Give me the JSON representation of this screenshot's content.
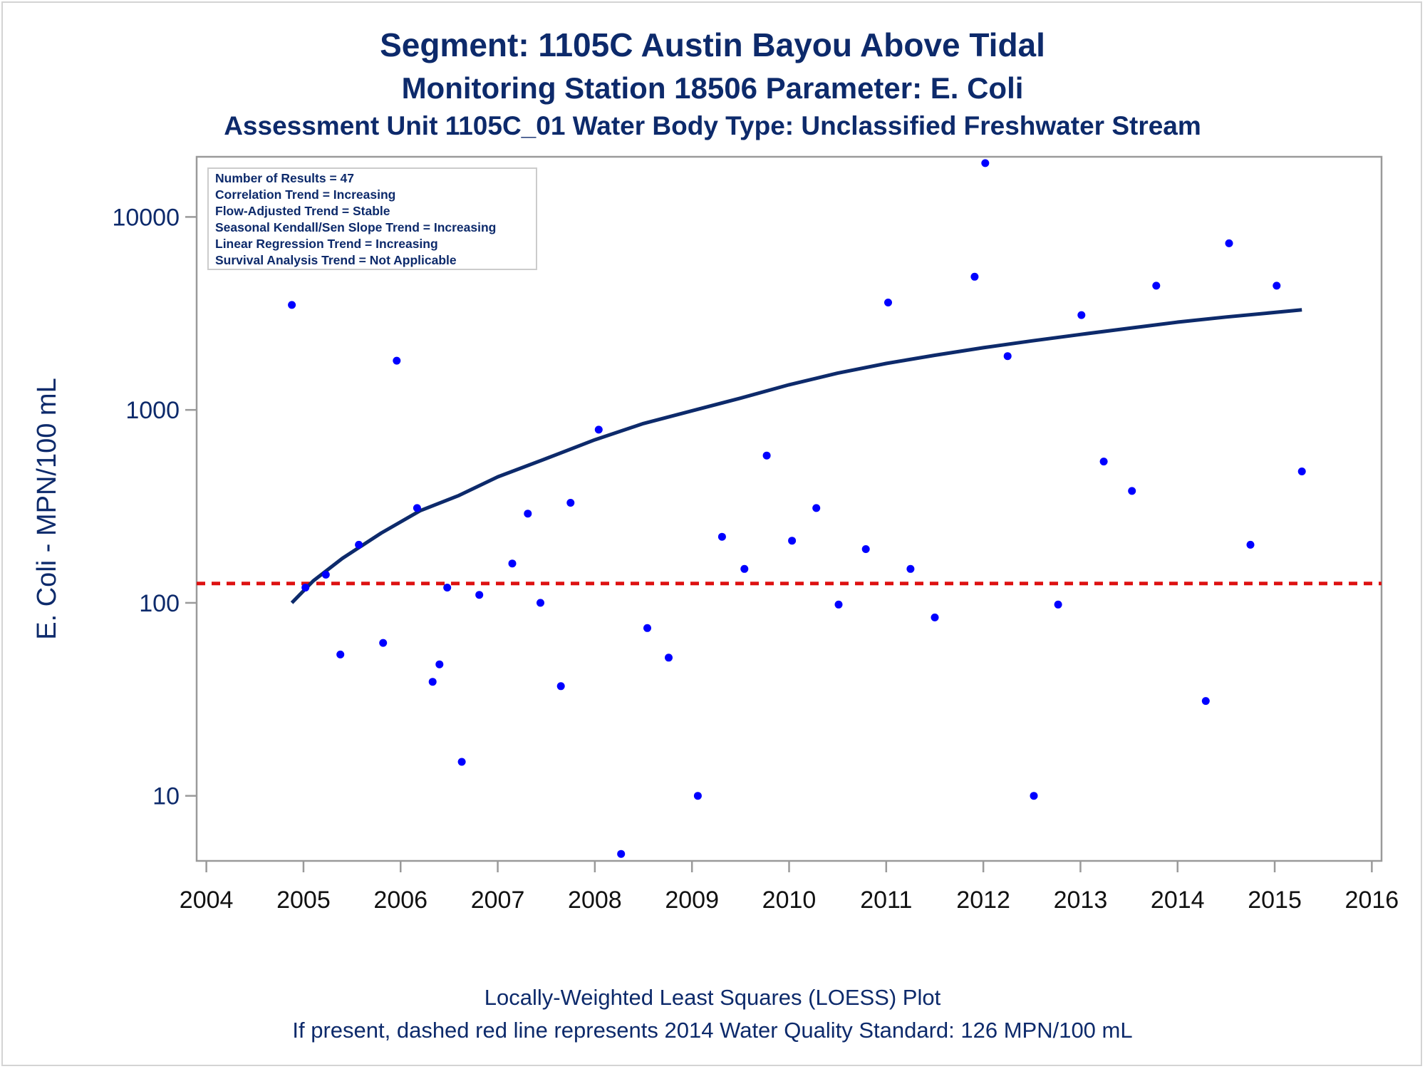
{
  "titles": {
    "line1": "Segment: 1105C  Austin Bayou Above Tidal",
    "line2": "Monitoring Station 18506 Parameter: E. Coli",
    "line3": "Assessment Unit 1105C_01   Water Body Type: Unclassified Freshwater Stream"
  },
  "footnotes": {
    "line1": "Locally-Weighted Least Squares (LOESS) Plot",
    "line2": "If present, dashed red line represents 2014 Water Quality Standard: 126 MPN/100 mL"
  },
  "stats_box": [
    "Number of Results = 47",
    "Correlation Trend = Increasing",
    "Flow-Adjusted Trend = Stable",
    "Seasonal Kendall/Sen Slope Trend = Increasing",
    "Linear Regression Trend = Increasing",
    "Survival Analysis Trend = Not Applicable"
  ],
  "chart_data": {
    "type": "scatter",
    "ylabel": "E. Coli - MPN/100 mL",
    "xlabel": "",
    "y_scale": "log",
    "xlim": [
      2003.9,
      2016.1
    ],
    "ylim": [
      4.6,
      20500
    ],
    "x_ticks": [
      2004,
      2005,
      2006,
      2007,
      2008,
      2009,
      2010,
      2011,
      2012,
      2013,
      2014,
      2015,
      2016
    ],
    "y_ticks": [
      10,
      100,
      1000,
      10000
    ],
    "grid": false,
    "colors": {
      "points": "#0000ff",
      "loess": "#0d2a6b",
      "standard": "#dd1111",
      "axis": "#9a9a9a"
    },
    "standard_line": {
      "value": 126,
      "style": "dashed"
    },
    "points": [
      {
        "x": 2004.88,
        "y": 3500
      },
      {
        "x": 2005.02,
        "y": 120
      },
      {
        "x": 2005.23,
        "y": 140
      },
      {
        "x": 2005.38,
        "y": 54
      },
      {
        "x": 2005.57,
        "y": 200
      },
      {
        "x": 2005.82,
        "y": 62
      },
      {
        "x": 2005.96,
        "y": 1800
      },
      {
        "x": 2006.17,
        "y": 310
      },
      {
        "x": 2006.33,
        "y": 39
      },
      {
        "x": 2006.4,
        "y": 48
      },
      {
        "x": 2006.48,
        "y": 120
      },
      {
        "x": 2006.63,
        "y": 15
      },
      {
        "x": 2006.81,
        "y": 110
      },
      {
        "x": 2007.15,
        "y": 160
      },
      {
        "x": 2007.31,
        "y": 290
      },
      {
        "x": 2007.44,
        "y": 100
      },
      {
        "x": 2007.65,
        "y": 37
      },
      {
        "x": 2007.75,
        "y": 330
      },
      {
        "x": 2008.04,
        "y": 790
      },
      {
        "x": 2008.27,
        "y": 5
      },
      {
        "x": 2008.54,
        "y": 74
      },
      {
        "x": 2008.76,
        "y": 52
      },
      {
        "x": 2009.06,
        "y": 10
      },
      {
        "x": 2009.31,
        "y": 220
      },
      {
        "x": 2009.54,
        "y": 150
      },
      {
        "x": 2009.77,
        "y": 580
      },
      {
        "x": 2010.03,
        "y": 210
      },
      {
        "x": 2010.28,
        "y": 310
      },
      {
        "x": 2010.51,
        "y": 98
      },
      {
        "x": 2010.79,
        "y": 190
      },
      {
        "x": 2011.02,
        "y": 3600
      },
      {
        "x": 2011.25,
        "y": 150
      },
      {
        "x": 2011.5,
        "y": 84
      },
      {
        "x": 2011.91,
        "y": 4900
      },
      {
        "x": 2012.02,
        "y": 19000
      },
      {
        "x": 2012.25,
        "y": 1900
      },
      {
        "x": 2012.52,
        "y": 10
      },
      {
        "x": 2012.77,
        "y": 98
      },
      {
        "x": 2013.01,
        "y": 3100
      },
      {
        "x": 2013.24,
        "y": 540
      },
      {
        "x": 2013.53,
        "y": 380
      },
      {
        "x": 2013.78,
        "y": 4400
      },
      {
        "x": 2014.29,
        "y": 31
      },
      {
        "x": 2014.53,
        "y": 7300
      },
      {
        "x": 2014.75,
        "y": 200
      },
      {
        "x": 2015.02,
        "y": 4400
      },
      {
        "x": 2015.28,
        "y": 480
      }
    ],
    "loess": [
      {
        "x": 2004.88,
        "y": 100
      },
      {
        "x": 2005.1,
        "y": 130
      },
      {
        "x": 2005.4,
        "y": 170
      },
      {
        "x": 2005.8,
        "y": 230
      },
      {
        "x": 2006.2,
        "y": 300
      },
      {
        "x": 2006.6,
        "y": 360
      },
      {
        "x": 2007.0,
        "y": 450
      },
      {
        "x": 2007.5,
        "y": 560
      },
      {
        "x": 2008.0,
        "y": 700
      },
      {
        "x": 2008.5,
        "y": 850
      },
      {
        "x": 2009.0,
        "y": 990
      },
      {
        "x": 2009.5,
        "y": 1150
      },
      {
        "x": 2010.0,
        "y": 1350
      },
      {
        "x": 2010.5,
        "y": 1550
      },
      {
        "x": 2011.0,
        "y": 1740
      },
      {
        "x": 2011.5,
        "y": 1920
      },
      {
        "x": 2012.0,
        "y": 2100
      },
      {
        "x": 2012.5,
        "y": 2280
      },
      {
        "x": 2013.0,
        "y": 2460
      },
      {
        "x": 2013.5,
        "y": 2650
      },
      {
        "x": 2014.0,
        "y": 2850
      },
      {
        "x": 2014.5,
        "y": 3030
      },
      {
        "x": 2015.0,
        "y": 3200
      },
      {
        "x": 2015.28,
        "y": 3300
      }
    ]
  }
}
